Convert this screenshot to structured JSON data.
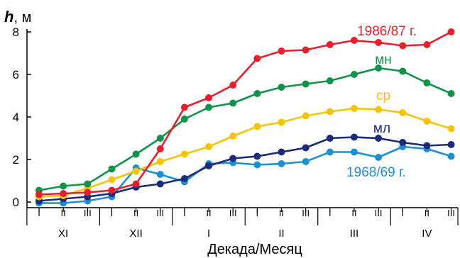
{
  "chart_data": {
    "type": "line",
    "ylabel_symbol": "h",
    "ylabel_unit": ", м",
    "xlabel": "Декада/Месяц",
    "ylim": [
      0,
      8
    ],
    "yticks": [
      "0",
      "2",
      "4",
      "6",
      "8"
    ],
    "decades": [
      "I",
      "II",
      "III",
      "I",
      "II",
      "III",
      "I",
      "II",
      "III",
      "I",
      "II",
      "III",
      "I",
      "II",
      "III",
      "I",
      "II",
      "III"
    ],
    "months": [
      "XI",
      "XII",
      "I",
      "II",
      "III",
      "IV"
    ],
    "grid": false,
    "series": [
      {
        "name": "1986/87 г.",
        "color": "#e4202e",
        "values": [
          0.35,
          0.4,
          0.45,
          0.55,
          0.85,
          2.5,
          4.45,
          4.9,
          5.5,
          6.75,
          7.1,
          7.15,
          7.4,
          7.6,
          7.5,
          7.35,
          7.4,
          8.0
        ]
      },
      {
        "name": "мн",
        "color": "#10924a",
        "values": [
          0.55,
          0.75,
          0.85,
          1.55,
          2.25,
          3.0,
          3.9,
          4.45,
          4.65,
          5.1,
          5.4,
          5.55,
          5.7,
          6.0,
          6.3,
          6.15,
          5.6,
          5.1
        ]
      },
      {
        "name": "ср",
        "color": "#f5c400",
        "values": [
          0.25,
          0.3,
          0.65,
          1.05,
          1.45,
          1.9,
          2.25,
          2.6,
          3.1,
          3.55,
          3.75,
          4.05,
          4.25,
          4.4,
          4.35,
          4.2,
          3.8,
          3.45
        ]
      },
      {
        "name": "мл",
        "color": "#1b2b7a",
        "values": [
          0.05,
          0.15,
          0.25,
          0.4,
          0.7,
          0.85,
          1.1,
          1.7,
          2.05,
          2.15,
          2.35,
          2.55,
          3.0,
          3.05,
          3.0,
          2.8,
          2.65,
          2.7
        ]
      },
      {
        "name": "1968/69 г.",
        "color": "#1e90d2",
        "values": [
          -0.05,
          -0.05,
          0.05,
          0.25,
          1.6,
          1.3,
          0.95,
          1.8,
          1.85,
          1.75,
          1.8,
          1.9,
          2.35,
          2.35,
          2.1,
          2.6,
          2.5,
          2.15
        ]
      }
    ]
  }
}
